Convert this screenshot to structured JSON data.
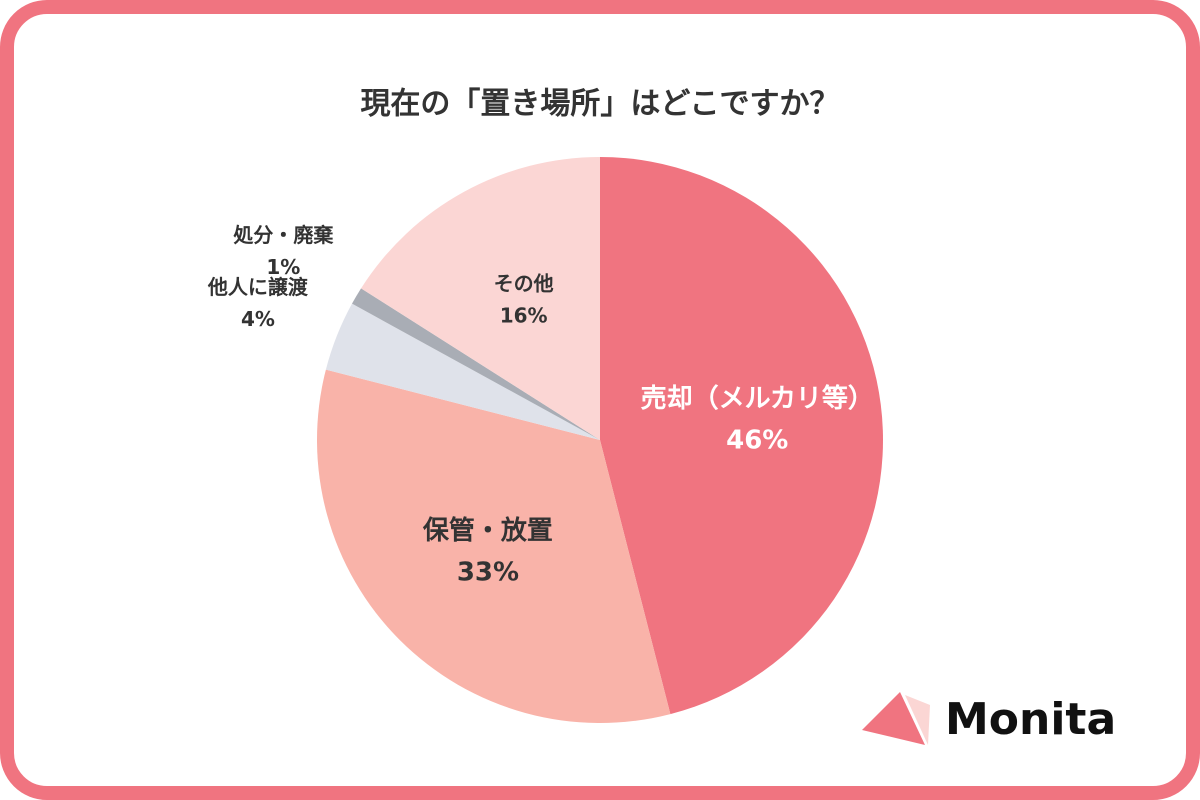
{
  "chart_data": {
    "type": "pie",
    "title": "現在の「置き場所」はどこですか？",
    "categories": [
      "売却（メルカリ等）",
      "保管・放置",
      "他人に譲渡",
      "処分・廃棄",
      "その他"
    ],
    "values": [
      46,
      33,
      4,
      1,
      16
    ],
    "value_labels": [
      "46%",
      "33%",
      "4%",
      "1%",
      "16%"
    ],
    "colors": [
      "#f07480",
      "#f9b3a9",
      "#dfe2ea",
      "#a9adb5",
      "#fbd6d4"
    ],
    "logo_text": "Monita"
  }
}
